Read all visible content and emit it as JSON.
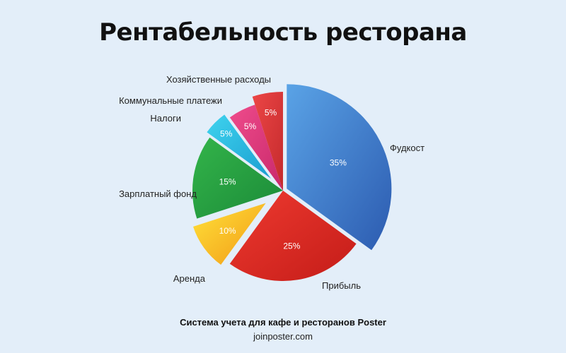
{
  "title": "Рентабельность ресторана",
  "footer": {
    "main": "Система учета для кафе и ресторанов Poster",
    "url": "joinposter.com"
  },
  "chart_data": {
    "type": "pie",
    "title": "Рентабельность ресторана",
    "exploded": true,
    "slices": [
      {
        "label": "Фудкост",
        "value": 35,
        "value_label": "35%",
        "colors": [
          "#5aa3e6",
          "#2c5bb0"
        ]
      },
      {
        "label": "Прибыль",
        "value": 25,
        "value_label": "25%",
        "colors": [
          "#ee3a30",
          "#c41c18"
        ]
      },
      {
        "label": "Аренда",
        "value": 10,
        "value_label": "10%",
        "colors": [
          "#ffe23a",
          "#f29a16"
        ]
      },
      {
        "label": "Зарплатный фонд",
        "value": 15,
        "value_label": "15%",
        "colors": [
          "#33b44a",
          "#1b8a38"
        ]
      },
      {
        "label": "Налоги",
        "value": 5,
        "value_label": "5%",
        "colors": [
          "#3fd3ee",
          "#1a9ed0"
        ]
      },
      {
        "label": "Коммунальные платежи",
        "value": 5,
        "value_label": "5%",
        "colors": [
          "#ef4c8c",
          "#c8286a"
        ]
      },
      {
        "label": "Хозяйственные расходы",
        "value": 5,
        "value_label": "5%",
        "colors": [
          "#ec4646",
          "#c42a2c"
        ]
      }
    ]
  }
}
